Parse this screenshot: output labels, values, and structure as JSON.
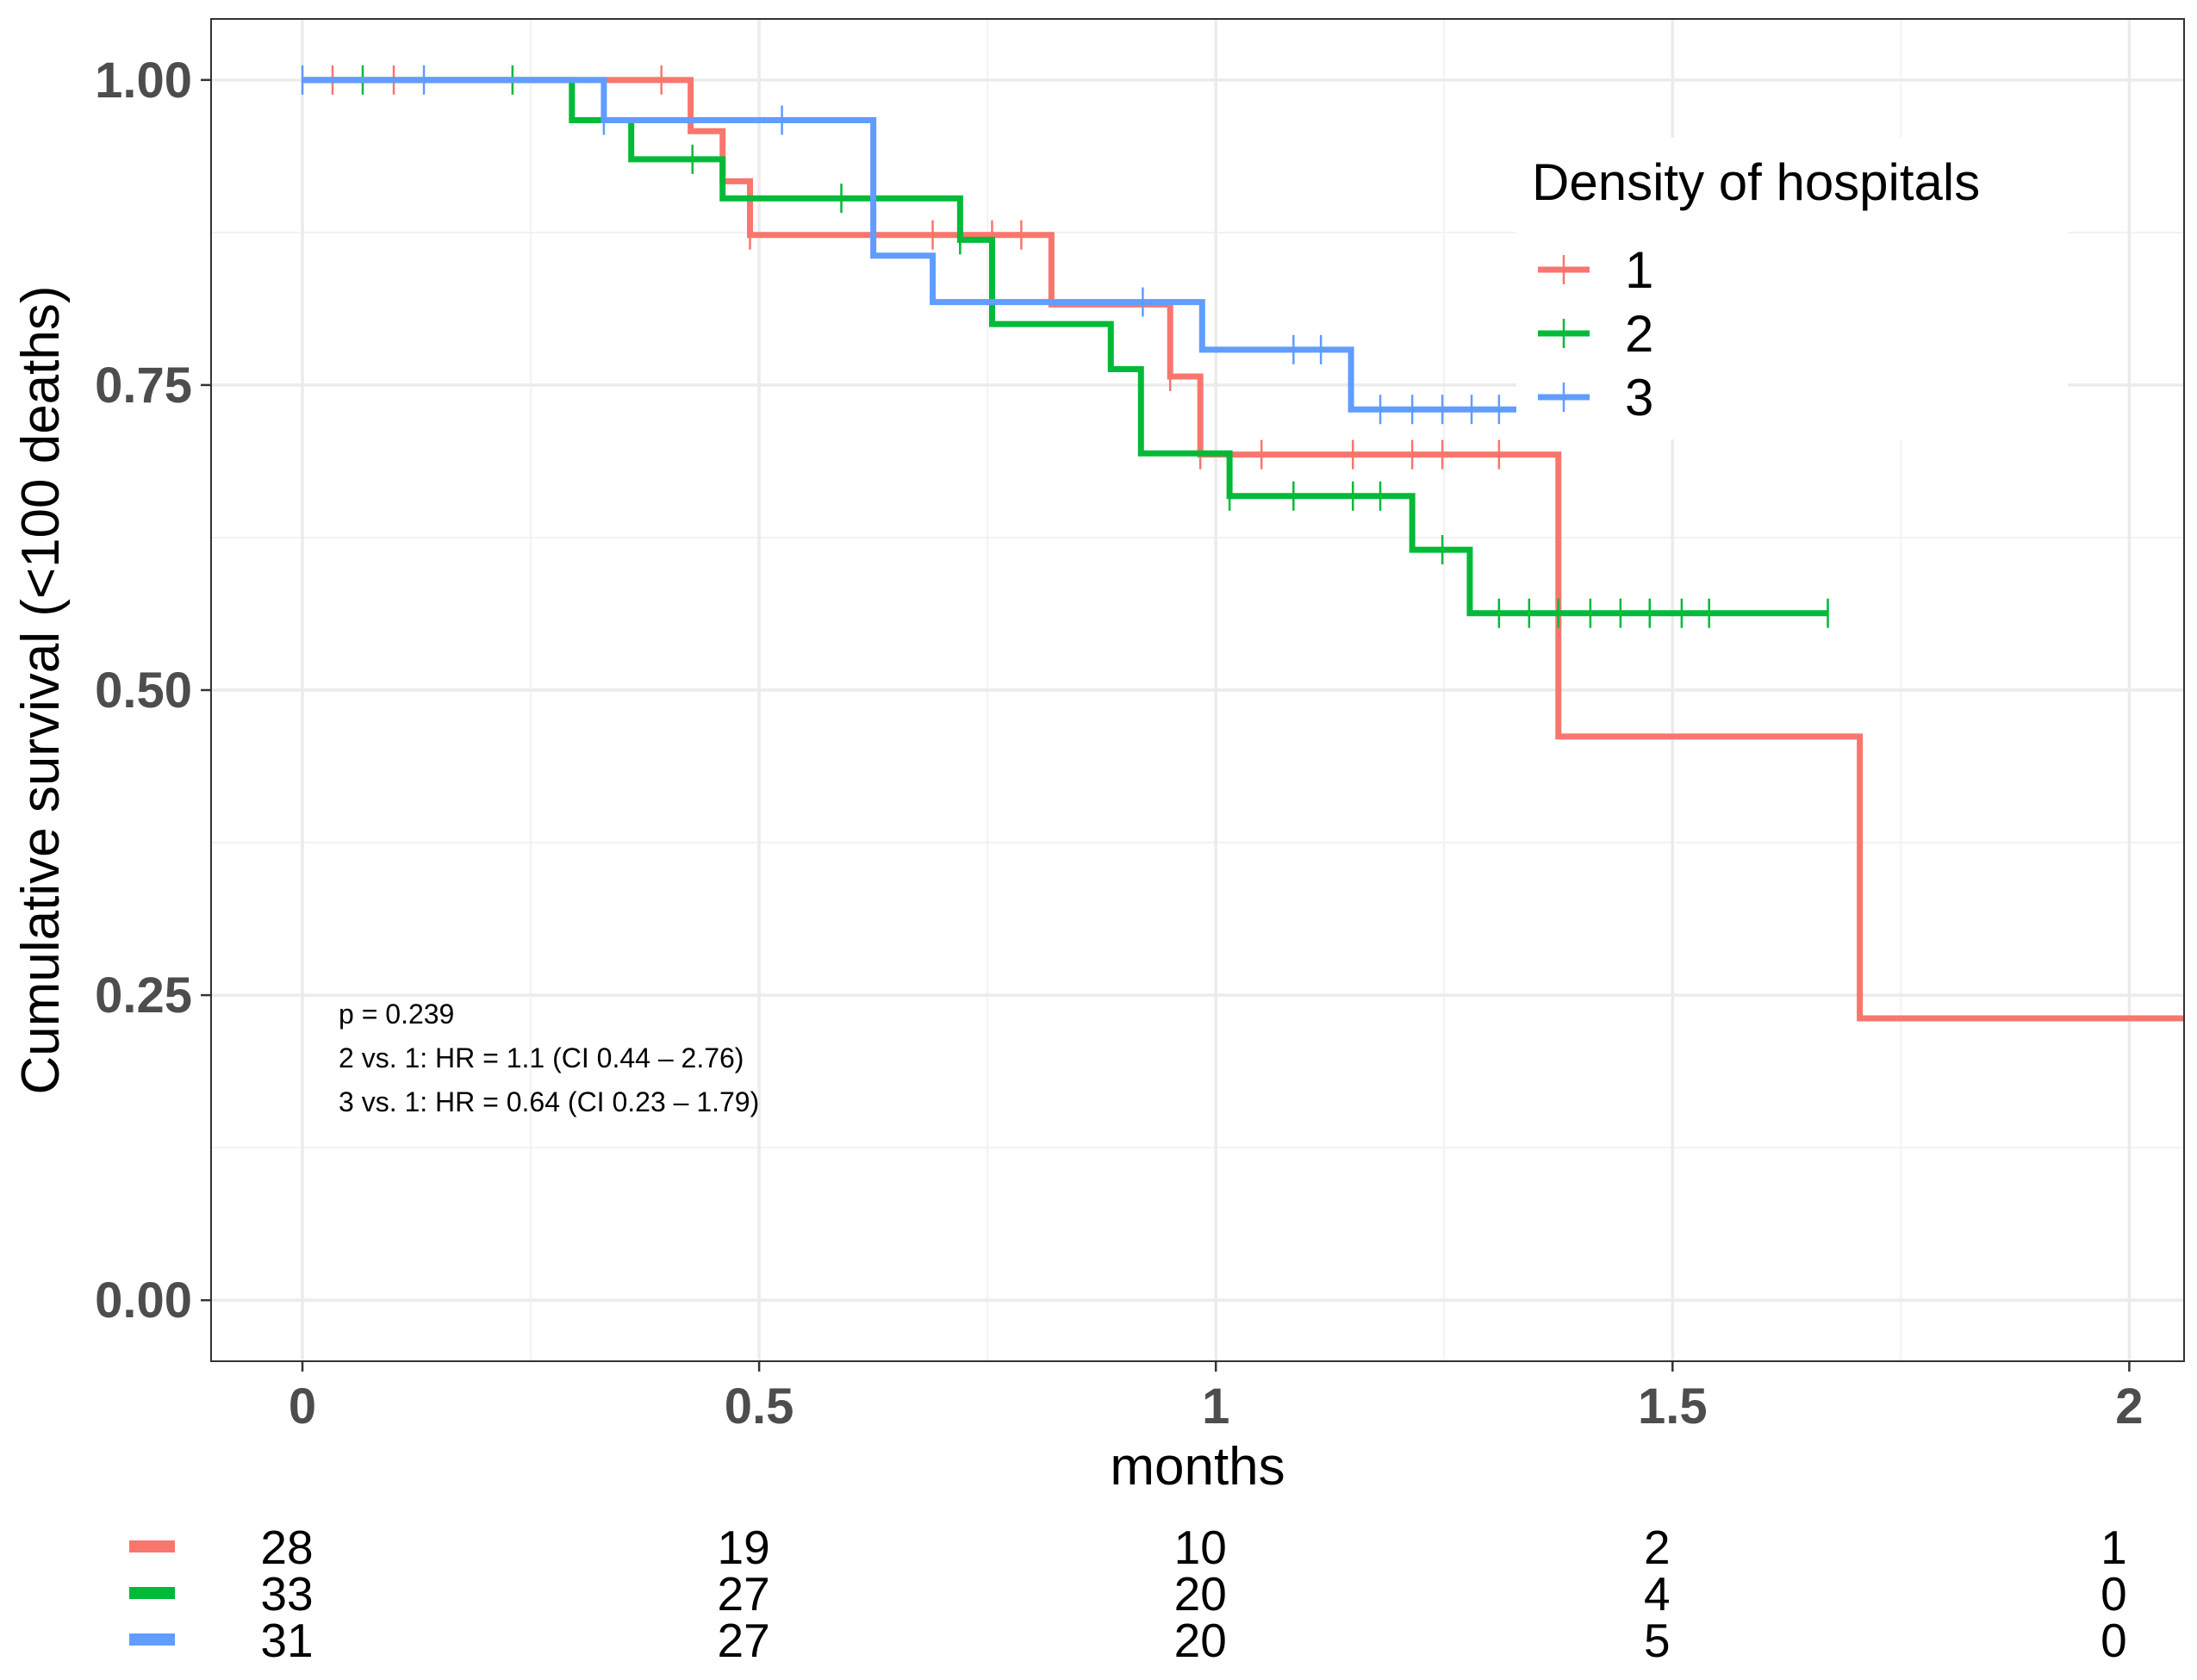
{
  "chart_data": {
    "type": "line",
    "subtype": "kaplan-meier step",
    "xlabel": "months",
    "ylabel": "Cumulative survival (<100 deaths)",
    "xlim": [
      -0.1,
      2.06
    ],
    "ylim": [
      -0.05,
      1.05
    ],
    "x_ticks": [
      0,
      0.5,
      1,
      1.5,
      2
    ],
    "x_tick_labels": [
      "0",
      "0.5",
      "1",
      "1.5",
      "2"
    ],
    "y_ticks": [
      0,
      0.25,
      0.5,
      0.75,
      1
    ],
    "y_tick_labels": [
      "0.00",
      "0.25",
      "0.50",
      "0.75",
      "1.00"
    ],
    "grid": true,
    "legend": {
      "title": "Density of hospitals",
      "position": "top-right"
    },
    "series": [
      {
        "name": "1",
        "color": "#F8766D",
        "steps": [
          [
            0,
            1.0
          ],
          [
            0.425,
            0.958
          ],
          [
            0.46,
            0.917
          ],
          [
            0.49,
            0.873
          ],
          [
            0.82,
            0.816
          ],
          [
            0.95,
            0.757
          ],
          [
            0.983,
            0.693
          ],
          [
            1.375,
            0.462
          ],
          [
            1.705,
            0.231
          ],
          [
            2.06,
            0.231
          ]
        ],
        "censor": [
          [
            0.033,
            1.0
          ],
          [
            0.1,
            1.0
          ],
          [
            0.393,
            1.0
          ],
          [
            0.49,
            0.873
          ],
          [
            0.69,
            0.873
          ],
          [
            0.72,
            0.873
          ],
          [
            0.755,
            0.873
          ],
          [
            0.787,
            0.873
          ],
          [
            0.95,
            0.757
          ],
          [
            0.983,
            0.693
          ],
          [
            1.05,
            0.693
          ],
          [
            1.15,
            0.693
          ],
          [
            1.215,
            0.693
          ],
          [
            1.248,
            0.693
          ],
          [
            1.31,
            0.693
          ]
        ]
      },
      {
        "name": "2",
        "color": "#00BA38",
        "steps": [
          [
            0,
            1.0
          ],
          [
            0.295,
            0.967
          ],
          [
            0.36,
            0.935
          ],
          [
            0.46,
            0.903
          ],
          [
            0.72,
            0.869
          ],
          [
            0.755,
            0.8
          ],
          [
            0.885,
            0.763
          ],
          [
            0.918,
            0.694
          ],
          [
            1.015,
            0.659
          ],
          [
            1.215,
            0.615
          ],
          [
            1.278,
            0.563
          ],
          [
            1.67,
            0.563
          ]
        ],
        "censor": [
          [
            0.066,
            1.0
          ],
          [
            0.23,
            1.0
          ],
          [
            0.427,
            0.935
          ],
          [
            0.59,
            0.903
          ],
          [
            0.72,
            0.869
          ],
          [
            1.015,
            0.659
          ],
          [
            1.085,
            0.659
          ],
          [
            1.15,
            0.659
          ],
          [
            1.18,
            0.659
          ],
          [
            1.248,
            0.615
          ],
          [
            1.31,
            0.563
          ],
          [
            1.343,
            0.563
          ],
          [
            1.375,
            0.563
          ],
          [
            1.41,
            0.563
          ],
          [
            1.443,
            0.563
          ],
          [
            1.475,
            0.563
          ],
          [
            1.51,
            0.563
          ],
          [
            1.54,
            0.563
          ],
          [
            1.67,
            0.563
          ]
        ]
      },
      {
        "name": "3",
        "color": "#619CFF",
        "steps": [
          [
            0,
            1.0
          ],
          [
            0.33,
            0.967
          ],
          [
            0.625,
            0.856
          ],
          [
            0.69,
            0.818
          ],
          [
            0.985,
            0.779
          ],
          [
            1.148,
            0.73
          ],
          [
            1.33,
            0.73
          ]
        ],
        "censor": [
          [
            0.0,
            1.0
          ],
          [
            0.133,
            1.0
          ],
          [
            0.33,
            0.967
          ],
          [
            0.525,
            0.967
          ],
          [
            0.92,
            0.818
          ],
          [
            1.085,
            0.779
          ],
          [
            1.115,
            0.779
          ],
          [
            1.18,
            0.73
          ],
          [
            1.215,
            0.73
          ],
          [
            1.248,
            0.73
          ],
          [
            1.28,
            0.73
          ],
          [
            1.31,
            0.73
          ]
        ]
      }
    ],
    "annotations": [
      "p = 0.239",
      "2 vs. 1: HR = 1.1 (CI 0.44 – 2.76)",
      "3 vs. 1: HR = 0.64 (CI 0.23 – 1.79)"
    ],
    "risk_table": {
      "times": [
        0,
        0.5,
        1,
        1.5,
        2
      ],
      "rows": [
        {
          "color": "#F8766D",
          "counts": [
            "28",
            "19",
            "10",
            "2",
            "1"
          ]
        },
        {
          "color": "#00BA38",
          "counts": [
            "33",
            "27",
            "20",
            "4",
            "0"
          ]
        },
        {
          "color": "#619CFF",
          "counts": [
            "31",
            "27",
            "20",
            "5",
            "0"
          ]
        }
      ]
    }
  }
}
